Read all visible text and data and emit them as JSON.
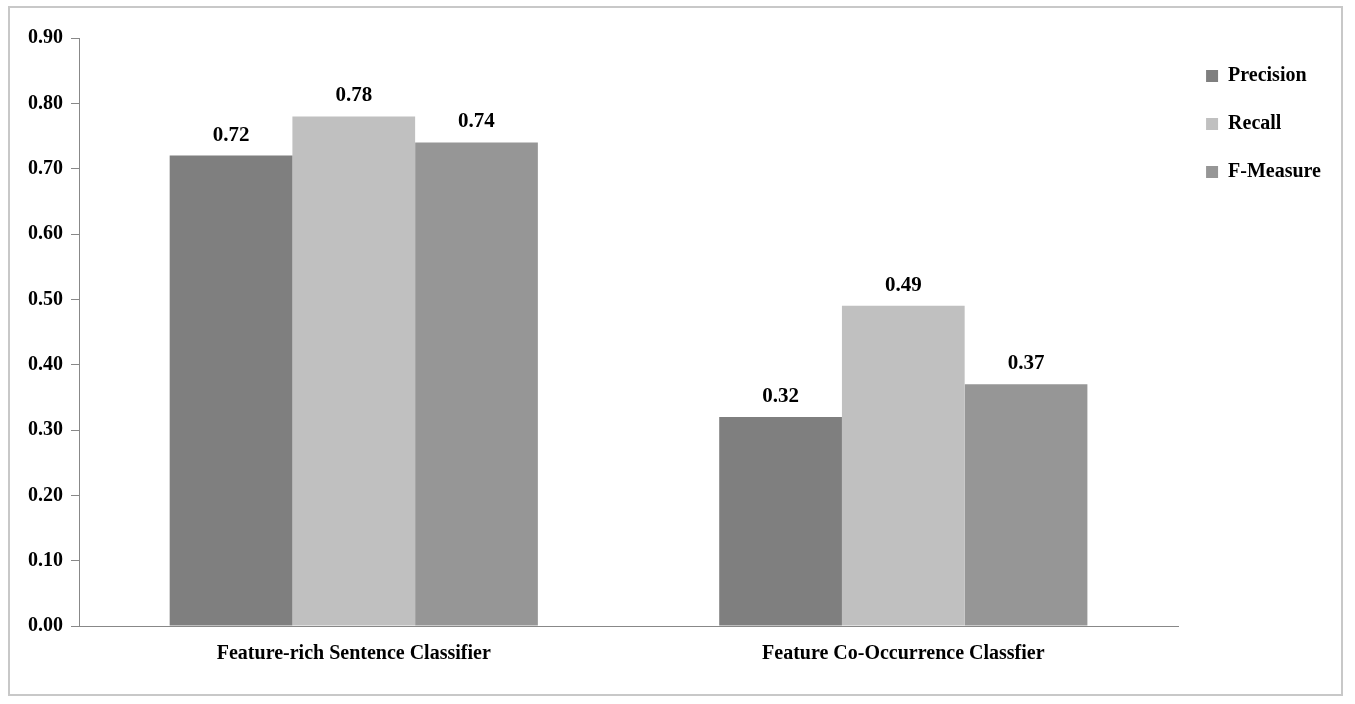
{
  "chart_data": {
    "type": "bar",
    "categories": [
      "Feature-rich Sentence Classifier",
      "Feature Co-Occurrence Classfier"
    ],
    "series": [
      {
        "name": "Precision",
        "color": "#7f7f7f",
        "values": [
          0.72,
          0.32
        ]
      },
      {
        "name": "Recall",
        "color": "#c0c0c0",
        "values": [
          0.78,
          0.49
        ]
      },
      {
        "name": "F-Measure",
        "color": "#969696",
        "values": [
          0.74,
          0.37
        ]
      }
    ],
    "ylim": [
      0,
      0.9
    ],
    "yticks": [
      {
        "value": 0,
        "label": "0.00"
      },
      {
        "value": 0.1,
        "label": "0.10"
      },
      {
        "value": 0.2,
        "label": "0.20"
      },
      {
        "value": 0.3,
        "label": "0.30"
      },
      {
        "value": 0.4,
        "label": "0.40"
      },
      {
        "value": 0.5,
        "label": "0.50"
      },
      {
        "value": 0.6,
        "label": "0.60"
      },
      {
        "value": 0.7,
        "label": "0.70"
      },
      {
        "value": 0.8,
        "label": "0.80"
      },
      {
        "value": 0.9,
        "label": "0.90"
      }
    ],
    "data_labels": true,
    "legend": "top right",
    "grid": false
  }
}
